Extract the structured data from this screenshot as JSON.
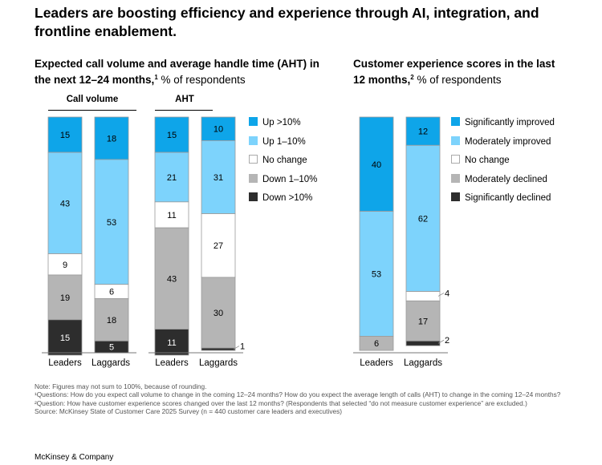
{
  "title": "Leaders are boosting efficiency and experience through AI, integration, and frontline enablement.",
  "left_panel": {
    "subtitle_bold": "Expected call volume and average handle time (AHT) in the next 12–24 months,",
    "subtitle_sup": "1",
    "subtitle_light": "% of respondents",
    "group_labels": [
      "Call volume",
      "AHT"
    ]
  },
  "right_panel": {
    "subtitle_bold": "Customer experience scores in the last 12 months,",
    "subtitle_sup": "2",
    "subtitle_light": "% of respondents"
  },
  "legend_left": [
    {
      "label": "Up >10%",
      "color": "#0ea5e9"
    },
    {
      "label": "Up 1–10%",
      "color": "#7dd3fc"
    },
    {
      "label": "No change",
      "color": "#ffffff"
    },
    {
      "label": "Down 1–10%",
      "color": "#b5b5b5"
    },
    {
      "label": "Down >10%",
      "color": "#2d2d2d"
    }
  ],
  "legend_right": [
    {
      "label": "Significantly improved",
      "color": "#0ea5e9"
    },
    {
      "label": "Moderately improved",
      "color": "#7dd3fc"
    },
    {
      "label": "No change",
      "color": "#ffffff"
    },
    {
      "label": "Moderately declined",
      "color": "#b5b5b5"
    },
    {
      "label": "Significantly declined",
      "color": "#2d2d2d"
    }
  ],
  "chart_data": [
    {
      "type": "bar",
      "stacked": true,
      "title": "Call volume",
      "categories": [
        "Leaders",
        "Laggards"
      ],
      "series": [
        {
          "name": "Up >10%",
          "values": [
            15,
            18
          ]
        },
        {
          "name": "Up 1–10%",
          "values": [
            43,
            53
          ]
        },
        {
          "name": "No change",
          "values": [
            9,
            6
          ]
        },
        {
          "name": "Down 1–10%",
          "values": [
            19,
            18
          ]
        },
        {
          "name": "Down >10%",
          "values": [
            15,
            5
          ]
        }
      ]
    },
    {
      "type": "bar",
      "stacked": true,
      "title": "AHT",
      "categories": [
        "Leaders",
        "Laggards"
      ],
      "series": [
        {
          "name": "Up >10%",
          "values": [
            15,
            10
          ]
        },
        {
          "name": "Up 1–10%",
          "values": [
            21,
            31
          ]
        },
        {
          "name": "No change",
          "values": [
            11,
            27
          ]
        },
        {
          "name": "Down 1–10%",
          "values": [
            43,
            30
          ]
        },
        {
          "name": "Down >10%",
          "values": [
            11,
            1
          ]
        }
      ]
    },
    {
      "type": "bar",
      "stacked": true,
      "title": "Customer experience scores",
      "categories": [
        "Leaders",
        "Laggards"
      ],
      "series": [
        {
          "name": "Significantly improved",
          "values": [
            40,
            12
          ]
        },
        {
          "name": "Moderately improved",
          "values": [
            53,
            62
          ]
        },
        {
          "name": "No change",
          "values": [
            0,
            4
          ]
        },
        {
          "name": "Moderately declined",
          "values": [
            6,
            17
          ]
        },
        {
          "name": "Significantly declined",
          "values": [
            0,
            2
          ]
        }
      ]
    }
  ],
  "notes": [
    "Note: Figures may not sum to 100%, because of rounding.",
    "¹Questions: How do you expect call volume to change in the coming 12–24 months? How do you expect the average length of calls (AHT) to change in the coming 12–24 months?",
    "²Question: How have customer experience scores changed over the last 12 months? (Respondents that selected “do not measure customer experience” are excluded.)",
    "Source: McKinsey State of Customer Care 2025 Survey (n = 440 customer care leaders and executives)"
  ],
  "footer": "McKinsey & Company"
}
